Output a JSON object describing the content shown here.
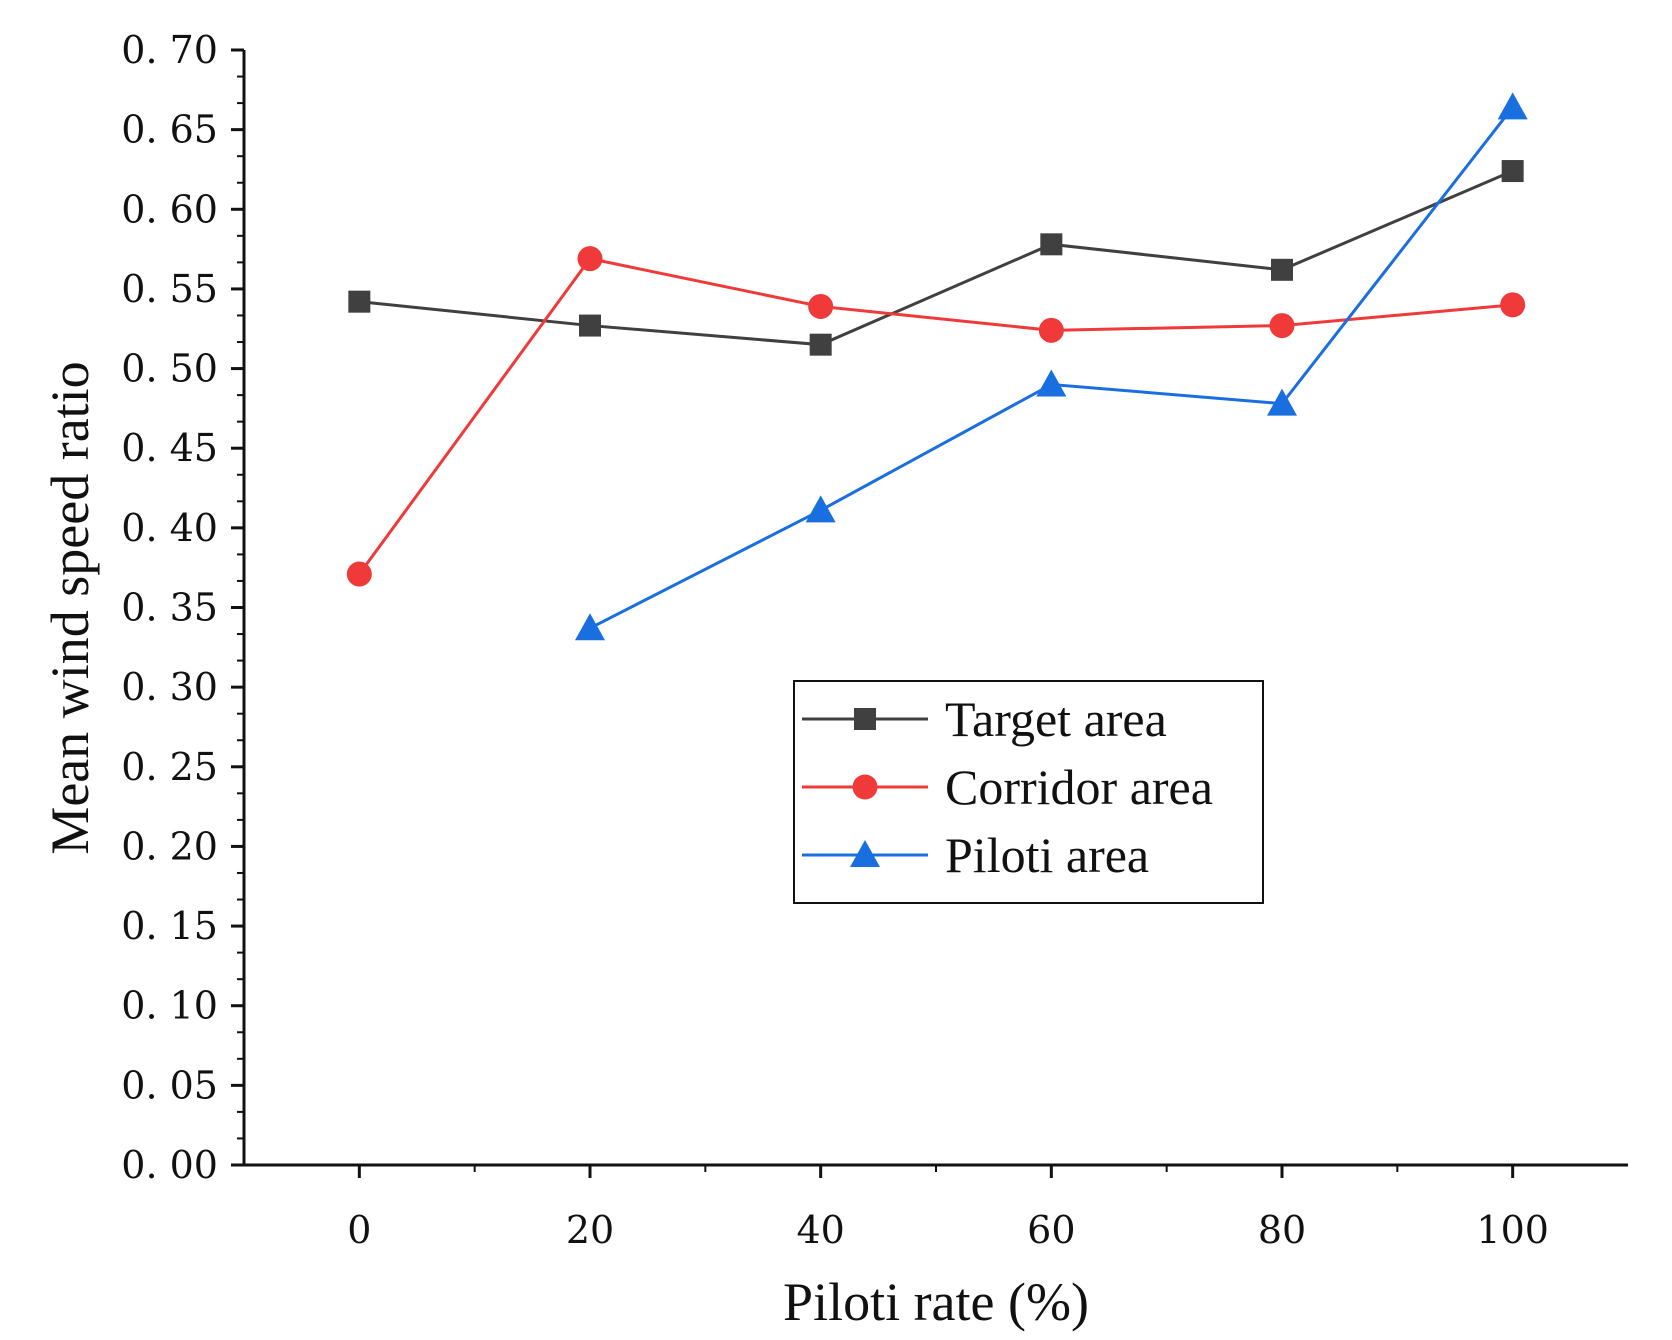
{
  "chart_data": {
    "type": "line",
    "title": "",
    "xlabel": "Piloti rate (%)",
    "ylabel": "Mean wind speed ratio",
    "xlim": [
      -10,
      110
    ],
    "ylim": [
      0.0,
      0.7
    ],
    "x_ticks": [
      "0",
      "20",
      "40",
      "60",
      "80",
      "100"
    ],
    "x_tick_values": [
      0,
      20,
      40,
      60,
      80,
      100
    ],
    "y_ticks": [
      "0. 00",
      "0. 05",
      "0. 10",
      "0. 15",
      "0. 20",
      "0. 25",
      "0. 30",
      "0. 35",
      "0. 40",
      "0. 45",
      "0. 50",
      "0. 55",
      "0. 60",
      "0. 65",
      "0. 70"
    ],
    "y_tick_values": [
      0.0,
      0.05,
      0.1,
      0.15,
      0.2,
      0.25,
      0.3,
      0.35,
      0.4,
      0.45,
      0.5,
      0.55,
      0.6,
      0.65,
      0.7
    ],
    "grid": false,
    "legend_position": "center-right",
    "series": [
      {
        "name": "Target area",
        "color": "#404040",
        "marker": "square",
        "x": [
          0,
          20,
          40,
          60,
          80,
          100
        ],
        "y": [
          0.542,
          0.527,
          0.515,
          0.578,
          0.562,
          0.624
        ]
      },
      {
        "name": "Corridor area",
        "color": "#f03a3a",
        "marker": "circle",
        "x": [
          0,
          20,
          40,
          60,
          80,
          100
        ],
        "y": [
          0.371,
          0.569,
          0.539,
          0.524,
          0.527,
          0.54
        ]
      },
      {
        "name": "Piloti area",
        "color": "#1a6fe0",
        "marker": "triangle",
        "x": [
          20,
          40,
          60,
          80,
          100
        ],
        "y": [
          0.337,
          0.411,
          0.49,
          0.478,
          0.664
        ]
      }
    ]
  }
}
